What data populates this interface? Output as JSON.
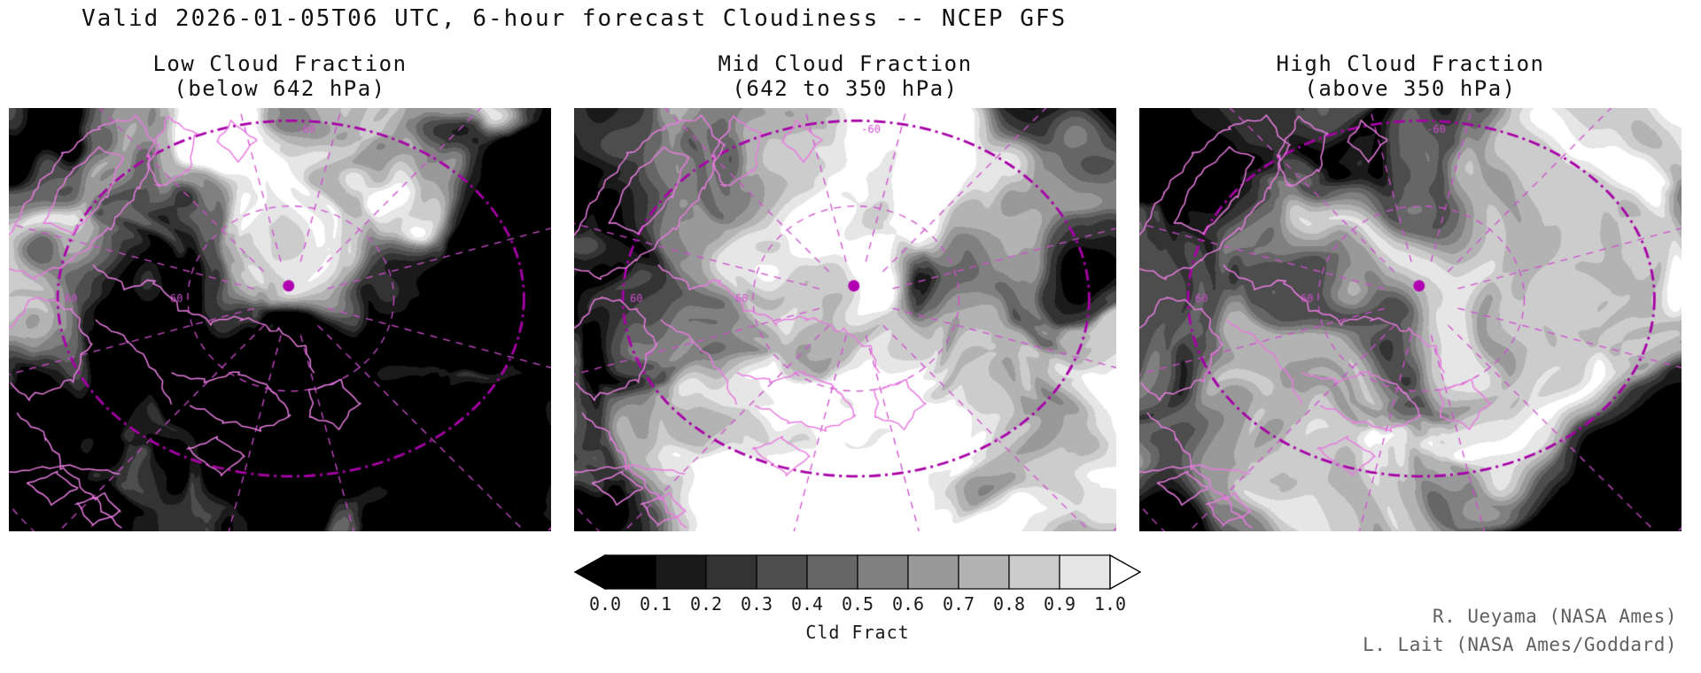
{
  "figure": {
    "title": "Valid 2026-01-05T06 UTC, 6-hour forecast Cloudiness -- NCEP GFS"
  },
  "panels": [
    {
      "id": "low",
      "title_line1": "Low Cloud Fraction",
      "title_line2": "(below 642 hPa)"
    },
    {
      "id": "mid",
      "title_line1": "Mid Cloud Fraction",
      "title_line2": "(642 to 350 hPa)"
    },
    {
      "id": "high",
      "title_line1": "High Cloud Fraction",
      "title_line2": "(above 350 hPa)"
    }
  ],
  "map_overlay": {
    "coastline_color": "#e87ce0",
    "grid_color": "#cf4fcf",
    "bold_circle_color": "#a800a8",
    "marker_color": "#b000b0",
    "lat_label": "60",
    "lon_label": "-60"
  },
  "colorbar": {
    "ticks": [
      "0.0",
      "0.1",
      "0.2",
      "0.3",
      "0.4",
      "0.5",
      "0.6",
      "0.7",
      "0.8",
      "0.9",
      "1.0"
    ],
    "label": "Cld Fract",
    "segment_colors": [
      "#000000",
      "#1a1a1a",
      "#333333",
      "#4d4d4d",
      "#666666",
      "#808080",
      "#999999",
      "#b3b3b3",
      "#cccccc",
      "#e6e6e6"
    ],
    "left_arrow_color": "#000000",
    "right_arrow_color": "#ffffff"
  },
  "credits": {
    "line1": "R. Ueyama (NASA Ames)",
    "line2": "L. Lait (NASA Ames/Goddard)"
  },
  "chart_data": {
    "type": "heatmap",
    "title": "Valid 2026-01-05T06 UTC, 6-hour forecast Cloudiness -- NCEP GFS",
    "panels": [
      {
        "title": "Low Cloud Fraction",
        "subtitle": "(below 642 hPa)"
      },
      {
        "title": "Mid Cloud Fraction",
        "subtitle": "(642 to 350 hPa)"
      },
      {
        "title": "High Cloud Fraction",
        "subtitle": "(above 350 hPa)"
      }
    ],
    "colorbar": {
      "label": "Cld Fract",
      "ticks": [
        0.0,
        0.1,
        0.2,
        0.3,
        0.4,
        0.5,
        0.6,
        0.7,
        0.8,
        0.9,
        1.0
      ],
      "range": [
        0,
        1
      ],
      "palette": "grayscale, 0=black (clear) to 1=white (overcast)"
    },
    "overlay_labels": [
      "60",
      "-60"
    ],
    "annotations": [
      "R. Ueyama (NASA Ames)",
      "L. Lait (NASA Ames/Goddard)"
    ]
  }
}
